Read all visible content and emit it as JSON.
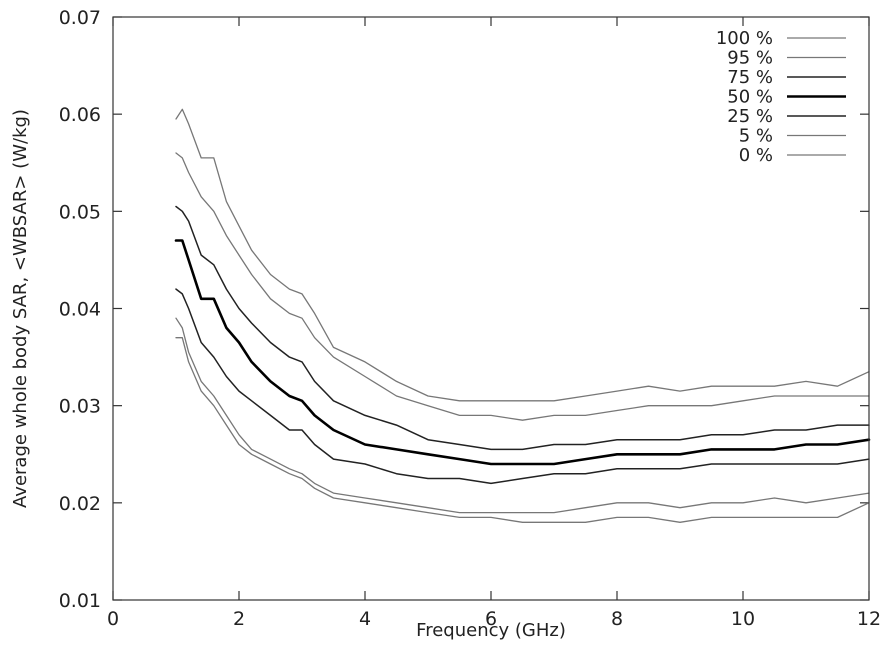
{
  "chart_data": {
    "type": "line",
    "xlabel": "Frequency (GHz)",
    "ylabel": "Average whole body SAR, <WBSAR> (W/kg)",
    "xlim": [
      0,
      12
    ],
    "ylim": [
      0.01,
      0.07
    ],
    "xticks": [
      "0",
      "2",
      "4",
      "6",
      "8",
      "10",
      "12"
    ],
    "yticks": [
      "0.01",
      "0.02",
      "0.03",
      "0.04",
      "0.05",
      "0.06",
      "0.07"
    ],
    "grid": false,
    "legend_position": "top-right",
    "series": [
      {
        "name": "100 %",
        "color": "#777777",
        "stroke": 1.3,
        "x": [
          1.0,
          1.1,
          1.2,
          1.4,
          1.6,
          1.8,
          2.0,
          2.2,
          2.5,
          2.8,
          3.0,
          3.2,
          3.5,
          4.0,
          4.5,
          5.0,
          5.5,
          6.0,
          6.5,
          7.0,
          7.5,
          8.0,
          8.5,
          9.0,
          9.5,
          10.0,
          10.5,
          11.0,
          11.5,
          12.0
        ],
        "y": [
          0.0595,
          0.0605,
          0.059,
          0.0555,
          0.0555,
          0.051,
          0.0485,
          0.046,
          0.0435,
          0.042,
          0.0415,
          0.0395,
          0.036,
          0.0345,
          0.0325,
          0.031,
          0.0305,
          0.0305,
          0.0305,
          0.0305,
          0.031,
          0.0315,
          0.032,
          0.0315,
          0.032,
          0.032,
          0.032,
          0.0325,
          0.032,
          0.0335
        ]
      },
      {
        "name": "95 %",
        "color": "#777777",
        "stroke": 1.3,
        "x": [
          1.0,
          1.1,
          1.2,
          1.4,
          1.6,
          1.8,
          2.0,
          2.2,
          2.5,
          2.8,
          3.0,
          3.2,
          3.5,
          4.0,
          4.5,
          5.0,
          5.5,
          6.0,
          6.5,
          7.0,
          7.5,
          8.0,
          8.5,
          9.0,
          9.5,
          10.0,
          10.5,
          11.0,
          11.5,
          12.0
        ],
        "y": [
          0.056,
          0.0555,
          0.054,
          0.0515,
          0.05,
          0.0475,
          0.0455,
          0.0435,
          0.041,
          0.0395,
          0.039,
          0.037,
          0.035,
          0.033,
          0.031,
          0.03,
          0.029,
          0.029,
          0.0285,
          0.029,
          0.029,
          0.0295,
          0.03,
          0.03,
          0.03,
          0.0305,
          0.031,
          0.031,
          0.031,
          0.031
        ]
      },
      {
        "name": "75 %",
        "color": "#222222",
        "stroke": 1.5,
        "x": [
          1.0,
          1.1,
          1.2,
          1.4,
          1.6,
          1.8,
          2.0,
          2.2,
          2.5,
          2.8,
          3.0,
          3.2,
          3.5,
          4.0,
          4.5,
          5.0,
          5.5,
          6.0,
          6.5,
          7.0,
          7.5,
          8.0,
          8.5,
          9.0,
          9.5,
          10.0,
          10.5,
          11.0,
          11.5,
          12.0
        ],
        "y": [
          0.0505,
          0.05,
          0.049,
          0.0455,
          0.0445,
          0.042,
          0.04,
          0.0385,
          0.0365,
          0.035,
          0.0345,
          0.0325,
          0.0305,
          0.029,
          0.028,
          0.0265,
          0.026,
          0.0255,
          0.0255,
          0.026,
          0.026,
          0.0265,
          0.0265,
          0.0265,
          0.027,
          0.027,
          0.0275,
          0.0275,
          0.028,
          0.028
        ]
      },
      {
        "name": "50 %",
        "color": "#000000",
        "stroke": 2.6,
        "x": [
          1.0,
          1.1,
          1.2,
          1.4,
          1.6,
          1.8,
          2.0,
          2.2,
          2.5,
          2.8,
          3.0,
          3.2,
          3.5,
          4.0,
          4.5,
          5.0,
          5.5,
          6.0,
          6.5,
          7.0,
          7.5,
          8.0,
          8.5,
          9.0,
          9.5,
          10.0,
          10.5,
          11.0,
          11.5,
          12.0
        ],
        "y": [
          0.047,
          0.047,
          0.045,
          0.041,
          0.041,
          0.038,
          0.0365,
          0.0345,
          0.0325,
          0.031,
          0.0305,
          0.029,
          0.0275,
          0.026,
          0.0255,
          0.025,
          0.0245,
          0.024,
          0.024,
          0.024,
          0.0245,
          0.025,
          0.025,
          0.025,
          0.0255,
          0.0255,
          0.0255,
          0.026,
          0.026,
          0.0265
        ]
      },
      {
        "name": "25 %",
        "color": "#222222",
        "stroke": 1.5,
        "x": [
          1.0,
          1.1,
          1.2,
          1.4,
          1.6,
          1.8,
          2.0,
          2.2,
          2.5,
          2.8,
          3.0,
          3.2,
          3.5,
          4.0,
          4.5,
          5.0,
          5.5,
          6.0,
          6.5,
          7.0,
          7.5,
          8.0,
          8.5,
          9.0,
          9.5,
          10.0,
          10.5,
          11.0,
          11.5,
          12.0
        ],
        "y": [
          0.042,
          0.0415,
          0.04,
          0.0365,
          0.035,
          0.033,
          0.0315,
          0.0305,
          0.029,
          0.0275,
          0.0275,
          0.026,
          0.0245,
          0.024,
          0.023,
          0.0225,
          0.0225,
          0.022,
          0.0225,
          0.023,
          0.023,
          0.0235,
          0.0235,
          0.0235,
          0.024,
          0.024,
          0.024,
          0.024,
          0.024,
          0.0245
        ]
      },
      {
        "name": "5 %",
        "color": "#777777",
        "stroke": 1.3,
        "x": [
          1.0,
          1.1,
          1.2,
          1.4,
          1.6,
          1.8,
          2.0,
          2.2,
          2.5,
          2.8,
          3.0,
          3.2,
          3.5,
          4.0,
          4.5,
          5.0,
          5.5,
          6.0,
          6.5,
          7.0,
          7.5,
          8.0,
          8.5,
          9.0,
          9.5,
          10.0,
          10.5,
          11.0,
          11.5,
          12.0
        ],
        "y": [
          0.039,
          0.038,
          0.0355,
          0.0325,
          0.031,
          0.029,
          0.027,
          0.0255,
          0.0245,
          0.0235,
          0.023,
          0.022,
          0.021,
          0.0205,
          0.02,
          0.0195,
          0.019,
          0.019,
          0.019,
          0.019,
          0.0195,
          0.02,
          0.02,
          0.0195,
          0.02,
          0.02,
          0.0205,
          0.02,
          0.0205,
          0.021
        ]
      },
      {
        "name": "0 %",
        "color": "#777777",
        "stroke": 1.3,
        "x": [
          1.0,
          1.1,
          1.2,
          1.4,
          1.6,
          1.8,
          2.0,
          2.2,
          2.5,
          2.8,
          3.0,
          3.2,
          3.5,
          4.0,
          4.5,
          5.0,
          5.5,
          6.0,
          6.5,
          7.0,
          7.5,
          8.0,
          8.5,
          9.0,
          9.5,
          10.0,
          10.5,
          11.0,
          11.5,
          12.0
        ],
        "y": [
          0.037,
          0.037,
          0.0345,
          0.0315,
          0.03,
          0.028,
          0.026,
          0.025,
          0.024,
          0.023,
          0.0225,
          0.0215,
          0.0205,
          0.02,
          0.0195,
          0.019,
          0.0185,
          0.0185,
          0.018,
          0.018,
          0.018,
          0.0185,
          0.0185,
          0.018,
          0.0185,
          0.0185,
          0.0185,
          0.0185,
          0.0185,
          0.02
        ]
      }
    ]
  }
}
